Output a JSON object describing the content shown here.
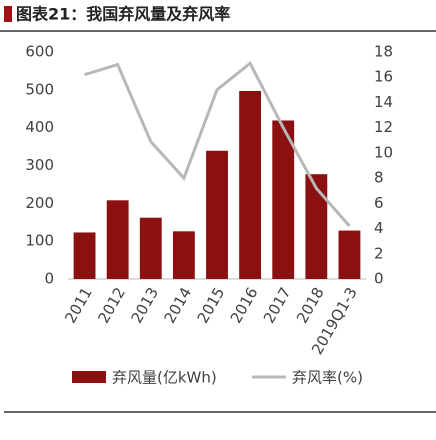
{
  "chart_data": {
    "type": "bar-line",
    "title": "图表21：我国弃风量及弃风率",
    "categories": [
      "2011",
      "2012",
      "2013",
      "2014",
      "2015",
      "2016",
      "2017",
      "2018",
      "2019Q1-3"
    ],
    "series": [
      {
        "name": "弃风量(亿kWh)",
        "color": "#8b1010",
        "type": "bar",
        "values": [
          123,
          208,
          162,
          126,
          339,
          497,
          419,
          277,
          128
        ]
      },
      {
        "name": "弃风率(%)",
        "color": "#b8b8b8",
        "type": "line",
        "axis": "y2",
        "values": [
          16.2,
          17,
          10.9,
          8,
          15,
          17.1,
          12,
          7.2,
          4.2
        ]
      }
    ],
    "ylim": [
      0,
      600
    ],
    "yticks": [
      0,
      100,
      200,
      300,
      400,
      500,
      600
    ],
    "y2lim": [
      0,
      18
    ],
    "y2ticks": [
      0,
      2,
      4,
      6,
      8,
      10,
      12,
      14,
      16,
      18
    ],
    "legend": "bottom"
  }
}
